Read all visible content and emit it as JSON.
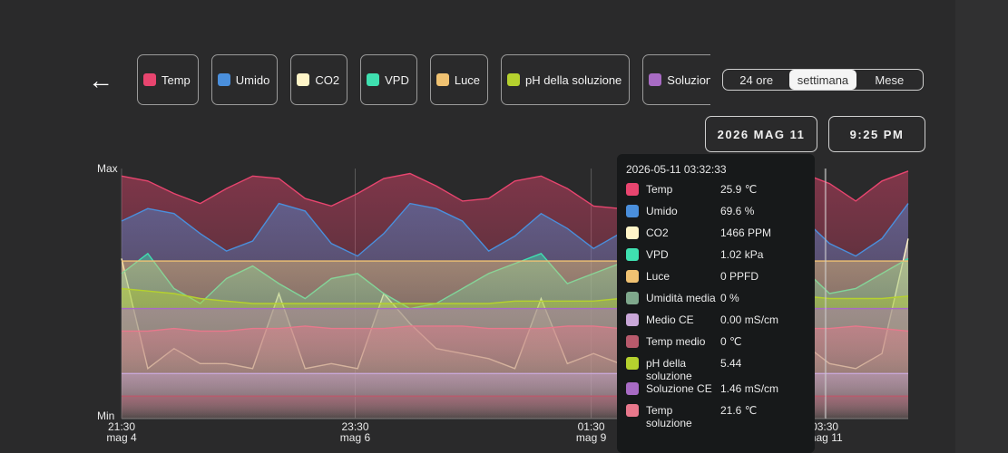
{
  "back_icon": "arrow-left-icon",
  "legend": [
    {
      "label": "Temp",
      "color": "#e8456f"
    },
    {
      "label": "Umido",
      "color": "#4a8fdc"
    },
    {
      "label": "CO2",
      "color": "#fff5c8"
    },
    {
      "label": "VPD",
      "color": "#3fe0b0"
    },
    {
      "label": "Luce",
      "color": "#f0c272"
    },
    {
      "label": "pH della soluzione",
      "color": "#b5d12e"
    },
    {
      "label": "Soluzione CE",
      "color": "#a86bc4"
    }
  ],
  "range_tabs": [
    {
      "label": "24 ore",
      "active": false
    },
    {
      "label": "settimana",
      "active": true
    },
    {
      "label": "Mese",
      "active": false
    }
  ],
  "date_button": "2026 MAG 11",
  "time_button": "9:25 PM",
  "tooltip": {
    "timestamp": "2026-05-11 03:32:33",
    "rows": [
      {
        "name": "Temp",
        "value": "25.9 ℃",
        "color": "#e8456f"
      },
      {
        "name": "Umido",
        "value": "69.6 %",
        "color": "#4a8fdc"
      },
      {
        "name": "CO2",
        "value": "1466 PPM",
        "color": "#fff5c8"
      },
      {
        "name": "VPD",
        "value": "1.02 kPa",
        "color": "#3fe0b0"
      },
      {
        "name": "Luce",
        "value": "  0 PPFD",
        "color": "#f0c272"
      },
      {
        "name": "Umidità media",
        "value": "0 %",
        "color": "#7fa88c"
      },
      {
        "name": "Medio CE",
        "value": "0.00 mS/cm",
        "color": "#c9a7d8"
      },
      {
        "name": "Temp medio",
        "value": "  0 ℃",
        "color": "#b85a6c"
      },
      {
        "name": "pH della soluzione",
        "value": "5.44",
        "color": "#b5d12e"
      },
      {
        "name": "Soluzione CE",
        "value": "1.46 mS/cm",
        "color": "#a86bc4"
      },
      {
        "name": "Temp soluzione",
        "value": "21.6 ℃",
        "color": "#e8788c"
      }
    ]
  },
  "chart_data": {
    "type": "area",
    "ylabel_top": "Max",
    "ylabel_bottom": "Min",
    "x_ticks": [
      {
        "time": "21:30",
        "date": "mag 4",
        "x": 0
      },
      {
        "time": "23:30",
        "date": "mag 6",
        "x": 0.297
      },
      {
        "time": "01:30",
        "date": "mag 9",
        "x": 0.597
      },
      {
        "time": "03:30",
        "date": "mag 11",
        "x": 0.894
      }
    ],
    "series": [
      {
        "name": "Temp",
        "color": "#e8456f",
        "values": [
          0.97,
          0.95,
          0.9,
          0.86,
          0.92,
          0.97,
          0.96,
          0.88,
          0.85,
          0.9,
          0.96,
          0.98,
          0.93,
          0.87,
          0.88,
          0.95,
          0.97,
          0.92,
          0.85,
          0.84,
          0.89,
          0.96,
          0.97,
          0.9,
          0.86,
          0.93,
          0.98,
          0.94,
          0.87,
          0.95,
          0.99
        ]
      },
      {
        "name": "Umido",
        "color": "#4a8fdc",
        "values": [
          0.79,
          0.84,
          0.82,
          0.74,
          0.67,
          0.71,
          0.86,
          0.83,
          0.7,
          0.65,
          0.74,
          0.86,
          0.84,
          0.79,
          0.67,
          0.73,
          0.82,
          0.76,
          0.68,
          0.74,
          0.87,
          0.84,
          0.72,
          0.66,
          0.75,
          0.86,
          0.8,
          0.7,
          0.65,
          0.72,
          0.86
        ]
      },
      {
        "name": "CO2",
        "color": "#fff5c8",
        "values": [
          0.64,
          0.2,
          0.28,
          0.22,
          0.22,
          0.2,
          0.5,
          0.2,
          0.22,
          0.2,
          0.5,
          0.38,
          0.28,
          0.26,
          0.24,
          0.2,
          0.48,
          0.22,
          0.26,
          0.22,
          0.44,
          0.42,
          0.5,
          0.22,
          0.2,
          0.5,
          0.3,
          0.22,
          0.2,
          0.26,
          0.72
        ]
      },
      {
        "name": "VPD",
        "color": "#3fe0b0",
        "values": [
          0.58,
          0.66,
          0.52,
          0.46,
          0.56,
          0.61,
          0.54,
          0.48,
          0.56,
          0.58,
          0.5,
          0.44,
          0.46,
          0.52,
          0.58,
          0.62,
          0.66,
          0.54,
          0.58,
          0.62,
          0.56,
          0.46,
          0.48,
          0.56,
          0.52,
          0.58,
          0.6,
          0.5,
          0.52,
          0.58,
          0.64
        ]
      },
      {
        "name": "Luce",
        "color": "#f0c272",
        "values": [
          0.63,
          0.63,
          0.63,
          0.63,
          0.63,
          0.63,
          0.63,
          0.63,
          0.63,
          0.63,
          0.63,
          0.63,
          0.63,
          0.63,
          0.63,
          0.63,
          0.63,
          0.63,
          0.63,
          0.63,
          0.63,
          0.63,
          0.63,
          0.63,
          0.63,
          0.63,
          0.63,
          0.63,
          0.63,
          0.63,
          0.63
        ]
      },
      {
        "name": "pH della soluzione",
        "color": "#b5d12e",
        "values": [
          0.52,
          0.51,
          0.5,
          0.48,
          0.47,
          0.46,
          0.46,
          0.46,
          0.46,
          0.46,
          0.46,
          0.46,
          0.46,
          0.46,
          0.46,
          0.47,
          0.47,
          0.47,
          0.47,
          0.48,
          0.48,
          0.47,
          0.46,
          0.47,
          0.48,
          0.5,
          0.49,
          0.48,
          0.48,
          0.48,
          0.49
        ]
      },
      {
        "name": "Soluzione CE",
        "color": "#a86bc4",
        "values": [
          0.44,
          0.44,
          0.44,
          0.44,
          0.44,
          0.44,
          0.44,
          0.44,
          0.44,
          0.44,
          0.44,
          0.44,
          0.44,
          0.44,
          0.44,
          0.44,
          0.44,
          0.44,
          0.44,
          0.44,
          0.44,
          0.44,
          0.44,
          0.44,
          0.44,
          0.44,
          0.44,
          0.44,
          0.44,
          0.44,
          0.44
        ]
      },
      {
        "name": "Temp soluzione",
        "color": "#e8788c",
        "values": [
          0.35,
          0.35,
          0.36,
          0.35,
          0.35,
          0.36,
          0.36,
          0.37,
          0.36,
          0.36,
          0.36,
          0.37,
          0.37,
          0.37,
          0.36,
          0.36,
          0.36,
          0.37,
          0.37,
          0.36,
          0.36,
          0.36,
          0.37,
          0.37,
          0.36,
          0.36,
          0.36,
          0.36,
          0.37,
          0.36,
          0.35
        ]
      },
      {
        "name": "Medio CE",
        "color": "#c9a7d8",
        "values": [
          0.18,
          0.18,
          0.18,
          0.18,
          0.18,
          0.18,
          0.18,
          0.18,
          0.18,
          0.18,
          0.18,
          0.18,
          0.18,
          0.18,
          0.18,
          0.18,
          0.18,
          0.18,
          0.18,
          0.18,
          0.18,
          0.18,
          0.18,
          0.18,
          0.18,
          0.18,
          0.18,
          0.18,
          0.18,
          0.18,
          0.18
        ]
      },
      {
        "name": "Temp medio",
        "color": "#b85a6c",
        "values": [
          0.09,
          0.09,
          0.09,
          0.09,
          0.09,
          0.09,
          0.09,
          0.09,
          0.09,
          0.09,
          0.09,
          0.09,
          0.09,
          0.09,
          0.09,
          0.09,
          0.09,
          0.09,
          0.09,
          0.09,
          0.09,
          0.09,
          0.09,
          0.09,
          0.09,
          0.09,
          0.09,
          0.09,
          0.09,
          0.09,
          0.09
        ]
      }
    ],
    "ylim": [
      0,
      1
    ],
    "grid": true
  }
}
